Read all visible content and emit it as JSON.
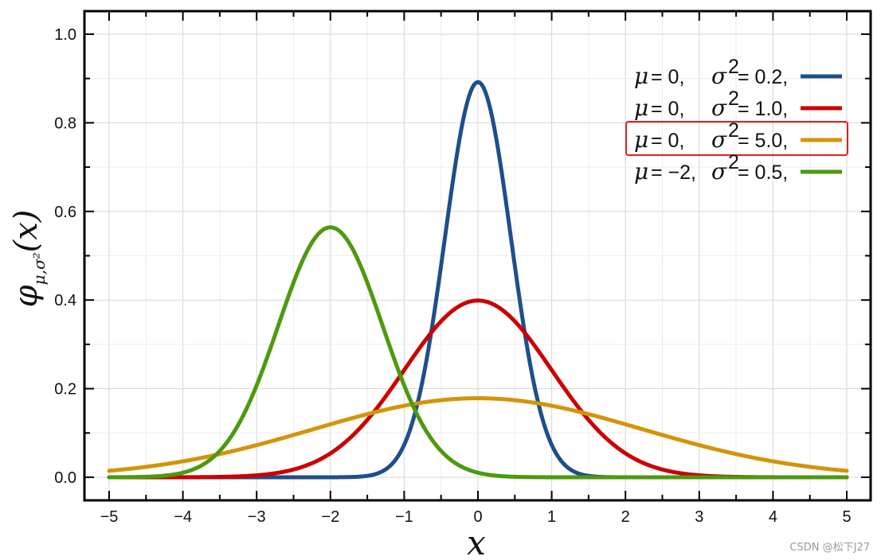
{
  "chart_data": {
    "type": "line",
    "xlabel": "x",
    "ylabel_symbol": "φ",
    "ylabel_subscript": "μ,σ²",
    "ylabel_arg": "(x)",
    "xlim": [
      -5.5,
      5.4
    ],
    "ylim": [
      -0.05,
      1.05
    ],
    "x_ticks": [
      -5,
      -4,
      -3,
      -2,
      -1,
      0,
      1,
      2,
      3,
      4,
      5
    ],
    "x_tick_labels": [
      "−5",
      "−4",
      "−3",
      "−2",
      "−1",
      "0",
      "1",
      "2",
      "3",
      "4",
      "5"
    ],
    "y_ticks": [
      0.0,
      0.2,
      0.4,
      0.6,
      0.8,
      1.0
    ],
    "y_tick_labels": [
      "0.0",
      "0.2",
      "0.4",
      "0.6",
      "0.8",
      "1.0"
    ],
    "x_domain": [
      -5,
      5
    ],
    "grid": true,
    "legend_position": "top-right",
    "series": [
      {
        "mu": 0,
        "sigma2": 0.2,
        "color": "#1f4e8c",
        "mu_text": "μ",
        "mu_val": "= 0,",
        "sigma_text": "σ",
        "sigma_sup": "2",
        "sigma_val": "= 0.2,",
        "highlighted": false
      },
      {
        "mu": 0,
        "sigma2": 1.0,
        "color": "#cc0000",
        "mu_text": "μ",
        "mu_val": "= 0,",
        "sigma_text": "σ",
        "sigma_sup": "2",
        "sigma_val": "= 1.0,",
        "highlighted": false
      },
      {
        "mu": 0,
        "sigma2": 5.0,
        "color": "#d4940a",
        "mu_text": "μ",
        "mu_val": "= 0,",
        "sigma_text": "σ",
        "sigma_sup": "2",
        "sigma_val": "= 5.0,",
        "highlighted": true
      },
      {
        "mu": -2,
        "sigma2": 0.5,
        "color": "#4c9a0e",
        "mu_text": "μ",
        "mu_val": "= −2,",
        "sigma_text": "σ",
        "sigma_sup": "2",
        "sigma_val": "= 0.5,",
        "highlighted": false
      }
    ],
    "highlight_color": "#e02020"
  },
  "watermark": "CSDN @松下J27"
}
